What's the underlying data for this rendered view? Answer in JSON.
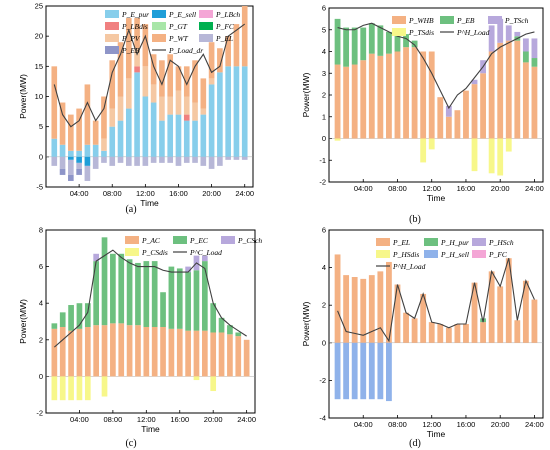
{
  "chart_data": [
    {
      "type": "bar",
      "panel_label": "(a)",
      "xlabel": "Time",
      "ylabel": "Power(MW)",
      "ylim": [
        -5,
        25
      ],
      "yticks": [
        -5,
        0,
        5,
        10,
        15,
        20,
        25
      ],
      "xtick_labels": [
        "04:00",
        "08:00",
        "12:00",
        "16:00",
        "20:00",
        "24:00"
      ],
      "legend_position": "top",
      "hours": [
        1,
        2,
        3,
        4,
        5,
        6,
        7,
        8,
        9,
        10,
        11,
        12,
        13,
        14,
        15,
        16,
        17,
        18,
        19,
        20,
        21,
        22,
        23,
        24
      ],
      "series": [
        {
          "name": "P_E_pur",
          "color": "#87ceeb",
          "values": [
            3,
            2,
            1,
            1,
            2,
            2,
            1,
            5,
            6,
            8,
            14,
            10,
            9,
            6,
            7,
            7,
            6,
            6,
            7,
            12,
            14,
            15,
            15,
            15
          ]
        },
        {
          "name": "P_E_sell",
          "color": "#1f9ed8",
          "values": [
            0,
            0,
            -0.5,
            -1,
            -1.5,
            0,
            0,
            0,
            0,
            0,
            0,
            0,
            0,
            0,
            0,
            0,
            0,
            0,
            0,
            0,
            0,
            0,
            0,
            0
          ]
        },
        {
          "name": "P_LBch",
          "color": "#f4a6d6",
          "values": [
            0,
            0,
            0,
            0,
            0,
            0,
            0,
            0,
            0,
            0,
            0,
            0,
            0,
            0,
            0,
            0,
            0,
            0,
            0,
            0,
            0,
            0,
            0,
            0
          ]
        },
        {
          "name": "P_LBdis",
          "color": "#f08080",
          "values": [
            0,
            0,
            0,
            0,
            0,
            0,
            0,
            0,
            0,
            0,
            1,
            0,
            0,
            0,
            0,
            0,
            1,
            0,
            0,
            0,
            0,
            0,
            0,
            0
          ]
        },
        {
          "name": "P_GT",
          "color": "#a8e6a8",
          "values": [
            0,
            0,
            0,
            0,
            0,
            0,
            0,
            0,
            0,
            0,
            0,
            0,
            0,
            0,
            0,
            0,
            0,
            0,
            0,
            0,
            0,
            0,
            0,
            0
          ]
        },
        {
          "name": "P_FC",
          "color": "#00b050",
          "values": [
            0,
            0,
            0,
            0,
            0,
            0,
            0,
            0,
            0,
            0,
            0,
            0,
            0,
            0,
            0,
            0,
            0,
            0,
            0,
            0,
            0,
            0,
            0,
            0
          ]
        },
        {
          "name": "P_PV",
          "color": "#f5c8a3",
          "values": [
            0,
            0,
            0,
            0,
            0,
            0,
            2,
            3,
            4,
            5,
            3,
            5,
            3,
            4,
            3,
            4,
            3,
            3,
            1,
            1,
            0,
            0,
            0,
            0
          ]
        },
        {
          "name": "P_WT",
          "color": "#f4b183",
          "values": [
            12,
            7,
            6,
            7,
            10,
            4,
            7,
            8,
            9,
            10,
            5,
            7,
            5,
            6,
            7,
            4,
            5,
            7,
            5,
            6,
            4,
            5,
            7,
            10
          ]
        },
        {
          "name": "P_EL",
          "color": "#b7b7d7",
          "values": [
            -1.5,
            -2,
            -2.5,
            -1,
            -2.5,
            -2,
            -1,
            -1.5,
            -1,
            -1.5,
            -1.5,
            -1.5,
            -1,
            -1,
            -1,
            -1.5,
            -1,
            -1,
            -1.5,
            -2,
            -1.5,
            -0.5,
            -0.5,
            -0.5
          ]
        },
        {
          "name": "P_EB",
          "color": "#8e95c8",
          "values": [
            0,
            -1,
            -1,
            -1,
            0,
            0,
            0,
            0,
            0,
            0,
            0,
            0,
            0,
            0,
            0,
            0,
            0,
            0,
            0,
            0,
            0,
            0,
            0,
            0
          ]
        }
      ],
      "line": {
        "name": "P_Load_dr",
        "color": "#404040",
        "values": [
          12,
          7,
          5,
          6,
          9,
          6,
          8,
          14,
          17,
          21,
          17,
          20,
          15,
          12,
          16,
          15,
          12,
          15,
          17,
          14,
          15,
          20,
          21,
          22
        ]
      }
    },
    {
      "type": "bar",
      "panel_label": "(b)",
      "xlabel": "Time",
      "ylabel": "Power(MW)",
      "ylim": [
        -2,
        6
      ],
      "yticks": [
        -2,
        -1,
        0,
        1,
        2,
        3,
        4,
        5,
        6
      ],
      "xtick_labels": [
        "04:00",
        "08:00",
        "12:00",
        "16:00",
        "20:00",
        "24:00"
      ],
      "legend_position": "top",
      "hours": [
        1,
        2,
        3,
        4,
        5,
        6,
        7,
        8,
        9,
        10,
        11,
        12,
        13,
        14,
        15,
        16,
        17,
        18,
        19,
        20,
        21,
        22,
        23,
        24
      ],
      "series": [
        {
          "name": "P_WHB",
          "color": "#f4b183",
          "values": [
            3.4,
            3.3,
            3.4,
            3.6,
            3.9,
            3.8,
            3.9,
            4,
            4.2,
            4.2,
            4.0,
            4.0,
            1.9,
            1.0,
            1.3,
            2.2,
            2.5,
            3.0,
            4.0,
            4.4,
            4.5,
            4.5,
            3.5,
            3.3
          ]
        },
        {
          "name": "P_EB",
          "color": "#6dc07f",
          "values": [
            2.1,
            1.8,
            1.7,
            1.5,
            1.4,
            1.4,
            1.0,
            0.8,
            0.6,
            0.3,
            0,
            0,
            0,
            0,
            0,
            0,
            0,
            0,
            0,
            0,
            0,
            0.2,
            0.5,
            0.4
          ]
        },
        {
          "name": "P_TSch",
          "color": "#b7a8dc",
          "values": [
            0,
            0,
            0,
            0,
            0,
            0,
            0,
            0,
            0,
            0,
            0,
            0,
            0,
            0.5,
            0,
            0,
            0.2,
            0.6,
            1.2,
            1.1,
            0.7,
            0.2,
            0.6,
            0.9
          ]
        },
        {
          "name": "P_TSdis",
          "color": "#f7f78a",
          "values": [
            -0.1,
            0,
            0,
            0,
            0,
            0,
            0,
            0,
            0,
            0,
            -1.1,
            -0.5,
            0,
            0,
            0,
            0,
            -1.5,
            0,
            -1.6,
            -1.7,
            -0.6,
            0,
            0,
            0
          ]
        }
      ],
      "line": {
        "name": "P^H_Load",
        "color": "#404040",
        "values": [
          5.1,
          5.0,
          5.0,
          5.2,
          5.3,
          5.1,
          4.9,
          4.7,
          4.6,
          4.3,
          3.7,
          3.0,
          2.2,
          1.4,
          2.0,
          2.3,
          2.8,
          3.3,
          3.9,
          4.2,
          4.4,
          4.6,
          4.8,
          4.9
        ]
      }
    },
    {
      "type": "bar",
      "panel_label": "(c)",
      "xlabel": "Time",
      "ylabel": "Power(MW)",
      "ylim": [
        -2,
        8
      ],
      "yticks": [
        -2,
        0,
        2,
        4,
        6,
        8
      ],
      "xtick_labels": [
        "04:00",
        "08:00",
        "12:00",
        "16:00",
        "20:00",
        "24:00"
      ],
      "legend_position": "top",
      "hours": [
        1,
        2,
        3,
        4,
        5,
        6,
        7,
        8,
        9,
        10,
        11,
        12,
        13,
        14,
        15,
        16,
        17,
        18,
        19,
        20,
        21,
        22,
        23,
        24
      ],
      "series": [
        {
          "name": "P_AC",
          "color": "#f4b183",
          "values": [
            2.6,
            2.7,
            2.5,
            2.6,
            2.7,
            2.8,
            2.8,
            2.9,
            2.9,
            2.8,
            2.8,
            2.7,
            2.7,
            2.7,
            2.6,
            2.6,
            2.5,
            2.5,
            2.5,
            2.4,
            2.4,
            2.3,
            2.2,
            2.0
          ]
        },
        {
          "name": "P_EC",
          "color": "#6dc07f",
          "values": [
            0.3,
            0.8,
            1.4,
            1.4,
            1.3,
            3.5,
            4.8,
            3.8,
            3.8,
            3.6,
            3.4,
            3.6,
            3.6,
            1.9,
            3.4,
            3.3,
            3.2,
            3.3,
            3.8,
            1.6,
            0.8,
            0.5,
            0.2,
            0
          ]
        },
        {
          "name": "P_CSch",
          "color": "#b7a8dc",
          "values": [
            0,
            0,
            0,
            0,
            0,
            0.4,
            0,
            0,
            0,
            0,
            0,
            0,
            0,
            0,
            0,
            0,
            0.3,
            0.8,
            0.3,
            0,
            0,
            0,
            0,
            0
          ]
        },
        {
          "name": "P_CSdis",
          "color": "#f7f78a",
          "values": [
            -1.3,
            -1.3,
            -1.3,
            -1.3,
            -1.3,
            0,
            -1.1,
            0,
            0,
            0,
            0,
            0,
            0,
            0,
            0,
            0,
            0,
            -0.2,
            0,
            -0.8,
            0,
            0,
            0,
            0
          ]
        }
      ],
      "line": {
        "name": "P^C_Load",
        "color": "#404040",
        "values": [
          1.6,
          2.0,
          2.4,
          2.8,
          3.5,
          6.3,
          6.6,
          6.9,
          6.5,
          6.2,
          6.0,
          6.0,
          6.0,
          5.8,
          5.7,
          5.7,
          5.7,
          6.2,
          5.9,
          4.0,
          3.2,
          2.8,
          2.5,
          2.2
        ]
      }
    },
    {
      "type": "bar",
      "panel_label": "(d)",
      "xlabel": "Time",
      "ylabel": "Power(MW)",
      "ylim": [
        -4,
        6
      ],
      "yticks": [
        -4,
        -2,
        0,
        2,
        4,
        6
      ],
      "xtick_labels": [
        "04:00",
        "08:00",
        "12:00",
        "16:00",
        "20:00",
        "24:00"
      ],
      "legend_position": "top",
      "hours": [
        1,
        2,
        3,
        4,
        5,
        6,
        7,
        8,
        9,
        10,
        11,
        12,
        13,
        14,
        15,
        16,
        17,
        18,
        19,
        20,
        21,
        22,
        23,
        24
      ],
      "series": [
        {
          "name": "P_EL",
          "color": "#f4b183",
          "values": [
            4.7,
            3.6,
            3.5,
            3.4,
            3.6,
            3.8,
            4.3,
            3.1,
            1.6,
            1.3,
            2.6,
            1.1,
            1.0,
            0.8,
            1.0,
            1.0,
            3.2,
            1.1,
            3.8,
            3.0,
            4.5,
            1.2,
            3.3,
            2.3
          ]
        },
        {
          "name": "P_H_pur",
          "color": "#6dc07f",
          "values": [
            0,
            0,
            0,
            0,
            0,
            0,
            0,
            0,
            0,
            0,
            0,
            0,
            0,
            0,
            0,
            0,
            0,
            0.2,
            0,
            0,
            0,
            0,
            0,
            0
          ]
        },
        {
          "name": "P_HSch",
          "color": "#b7a8dc",
          "values": [
            0,
            0,
            0,
            0,
            0,
            0,
            0,
            0,
            0,
            0,
            0,
            0,
            0,
            0,
            0,
            0,
            0,
            0,
            0,
            0,
            0,
            0,
            0,
            0
          ]
        },
        {
          "name": "P_HSdis",
          "color": "#f7f78a",
          "values": [
            0,
            0,
            0,
            0,
            0,
            0,
            0,
            0,
            0,
            0,
            0,
            0,
            0,
            0,
            0,
            0,
            0,
            0,
            0,
            0,
            0,
            0,
            0,
            0
          ]
        },
        {
          "name": "P_H_sell",
          "color": "#8fb2ea",
          "values": [
            -3.0,
            -3.0,
            -3.0,
            -3.0,
            -3.0,
            -3.0,
            -3.1,
            0,
            0,
            0,
            0,
            0,
            0,
            0,
            0,
            0,
            0,
            0,
            0,
            0,
            0,
            0,
            0,
            0
          ]
        },
        {
          "name": "P_FC",
          "color": "#f4a6d6",
          "values": [
            0,
            0,
            0,
            0,
            0,
            0,
            0,
            0,
            0,
            0,
            0,
            0,
            0,
            0,
            0,
            0,
            0,
            0,
            0,
            0,
            0,
            0,
            0,
            0
          ]
        }
      ],
      "line": {
        "name": "P^H_Load",
        "color": "#404040",
        "values": [
          1.7,
          0.6,
          0.5,
          0.4,
          0.6,
          0.8,
          0.1,
          3.1,
          1.6,
          1.3,
          2.6,
          1.1,
          1.0,
          0.8,
          1.0,
          1.0,
          3.2,
          1.1,
          3.8,
          3.0,
          4.5,
          1.2,
          3.3,
          2.3
        ]
      }
    }
  ]
}
